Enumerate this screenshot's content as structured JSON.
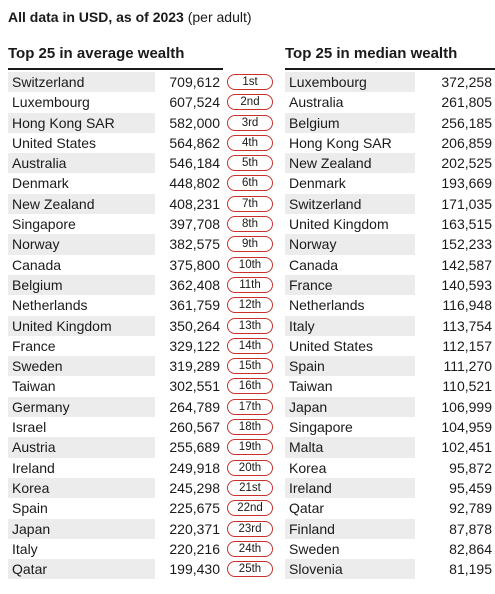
{
  "caption": {
    "bold": "All data in USD, as of 2023",
    "normal": " (per adult)"
  },
  "left_table": {
    "title": "Top 25 in average wealth",
    "rows": [
      {
        "country": "Switzerland",
        "value": "709,612"
      },
      {
        "country": "Luxembourg",
        "value": "607,524"
      },
      {
        "country": "Hong Kong SAR",
        "value": "582,000"
      },
      {
        "country": "United States",
        "value": "564,862"
      },
      {
        "country": "Australia",
        "value": "546,184"
      },
      {
        "country": "Denmark",
        "value": "448,802"
      },
      {
        "country": "New Zealand",
        "value": "408,231"
      },
      {
        "country": "Singapore",
        "value": "397,708"
      },
      {
        "country": "Norway",
        "value": "382,575"
      },
      {
        "country": "Canada",
        "value": "375,800"
      },
      {
        "country": "Belgium",
        "value": "362,408"
      },
      {
        "country": "Netherlands",
        "value": "361,759"
      },
      {
        "country": "United Kingdom",
        "value": "350,264"
      },
      {
        "country": "France",
        "value": "329,122"
      },
      {
        "country": "Sweden",
        "value": "319,289"
      },
      {
        "country": "Taiwan",
        "value": "302,551"
      },
      {
        "country": "Germany",
        "value": "264,789"
      },
      {
        "country": "Israel",
        "value": "260,567"
      },
      {
        "country": "Austria",
        "value": "255,689"
      },
      {
        "country": "Ireland",
        "value": "249,918"
      },
      {
        "country": "Korea",
        "value": "245,298"
      },
      {
        "country": "Spain",
        "value": "225,675"
      },
      {
        "country": "Japan",
        "value": "220,371"
      },
      {
        "country": "Italy",
        "value": "220,216"
      },
      {
        "country": "Qatar",
        "value": "199,430"
      }
    ]
  },
  "ranks": [
    "1st",
    "2nd",
    "3rd",
    "4th",
    "5th",
    "6th",
    "7th",
    "8th",
    "9th",
    "10th",
    "11th",
    "12th",
    "13th",
    "14th",
    "15th",
    "16th",
    "17th",
    "18th",
    "19th",
    "20th",
    "21st",
    "22nd",
    "23rd",
    "24th",
    "25th"
  ],
  "right_table": {
    "title": "Top 25 in median wealth",
    "rows": [
      {
        "country": "Luxembourg",
        "value": "372,258"
      },
      {
        "country": "Australia",
        "value": "261,805"
      },
      {
        "country": "Belgium",
        "value": "256,185"
      },
      {
        "country": "Hong Kong SAR",
        "value": "206,859"
      },
      {
        "country": "New Zealand",
        "value": "202,525"
      },
      {
        "country": "Denmark",
        "value": "193,669"
      },
      {
        "country": "Switzerland",
        "value": "171,035"
      },
      {
        "country": "United Kingdom",
        "value": "163,515"
      },
      {
        "country": "Norway",
        "value": "152,233"
      },
      {
        "country": "Canada",
        "value": "142,587"
      },
      {
        "country": "France",
        "value": "140,593"
      },
      {
        "country": "Netherlands",
        "value": "116,948"
      },
      {
        "country": "Italy",
        "value": "113,754"
      },
      {
        "country": "United States",
        "value": "112,157"
      },
      {
        "country": "Spain",
        "value": "111,270"
      },
      {
        "country": "Taiwan",
        "value": "110,521"
      },
      {
        "country": "Japan",
        "value": "106,999"
      },
      {
        "country": "Singapore",
        "value": "104,959"
      },
      {
        "country": "Malta",
        "value": "102,451"
      },
      {
        "country": "Korea",
        "value": "95,872"
      },
      {
        "country": "Ireland",
        "value": "95,459"
      },
      {
        "country": "Qatar",
        "value": "92,789"
      },
      {
        "country": "Finland",
        "value": "87,878"
      },
      {
        "country": "Sweden",
        "value": "82,864"
      },
      {
        "country": "Slovenia",
        "value": "81,195"
      }
    ]
  },
  "colors": {
    "stripe": "#ececec",
    "rank_border": "#c9302c",
    "text": "#1a1a1a"
  }
}
